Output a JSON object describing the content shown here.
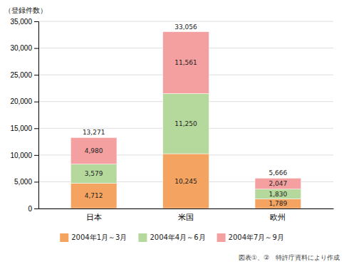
{
  "chart_data": {
    "type": "bar",
    "stacked": true,
    "categories": [
      "日本",
      "米国",
      "欧州"
    ],
    "series": [
      {
        "name": "2004年1月～3月",
        "color": "#F4A460",
        "values": [
          4712,
          10245,
          1789
        ],
        "value_labels": [
          "4,712",
          "10,245",
          "1,789"
        ]
      },
      {
        "name": "2004年4月～6月",
        "color": "#B5D99C",
        "values": [
          3579,
          11250,
          1830
        ],
        "value_labels": [
          "3,579",
          "11,250",
          "1,830"
        ]
      },
      {
        "name": "2004年7月～9月",
        "color": "#F4A0A0",
        "values": [
          4980,
          11561,
          2047
        ],
        "value_labels": [
          "4,980",
          "11,561",
          "2,047"
        ]
      }
    ],
    "totals": [
      13271,
      33056,
      5666
    ],
    "total_labels": [
      "13,271",
      "33,056",
      "5,666"
    ],
    "y_label": "（登録件数）",
    "footnote": "図表①、②　特許庁資料により作成",
    "ylim": [
      0,
      35000
    ],
    "yticks": [
      0,
      {
        "value": 5000,
        "label": "5,000"
      },
      {
        "value": 10000,
        "label": "10,000"
      },
      {
        "value": 15000,
        "label": "15,000"
      },
      {
        "value": 20000,
        "label": "20,000"
      },
      {
        "value": 25000,
        "label": "25,000"
      },
      {
        "value": 30000,
        "label": "30,000"
      },
      {
        "value": 35000,
        "label": "35,000"
      }
    ],
    "grid": true,
    "data_labels": true,
    "legend": "bottom"
  }
}
